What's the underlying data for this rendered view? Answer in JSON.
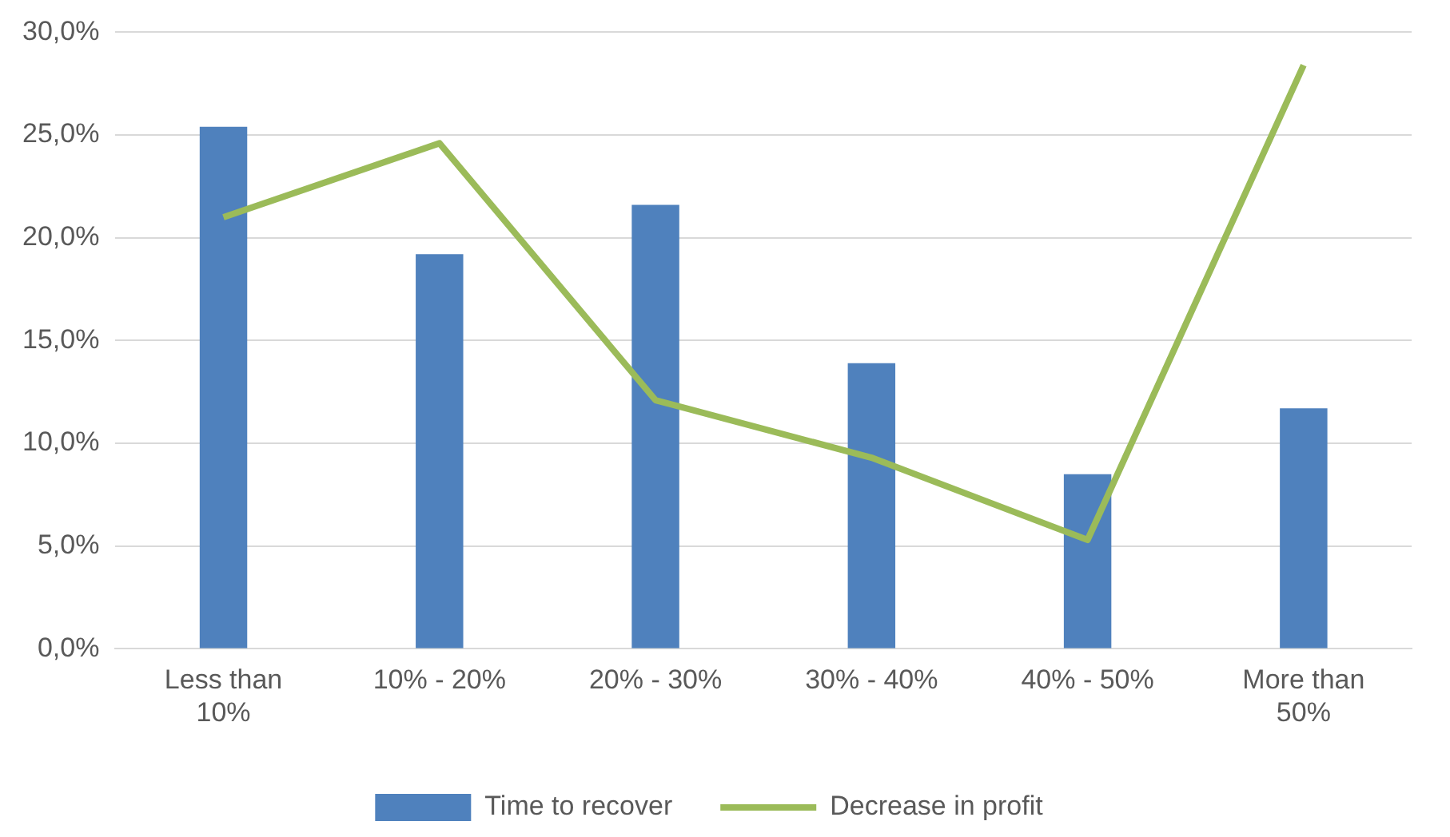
{
  "chart_data": {
    "type": "bar",
    "categories": [
      "Less than 10%",
      "10% - 20%",
      "20% - 30%",
      "30% - 40%",
      "40% - 50%",
      "More than 50%"
    ],
    "series": [
      {
        "name": "Time to recover",
        "color": "#4f81bd",
        "values": [
          25.4,
          19.2,
          21.6,
          13.9,
          8.5,
          11.7
        ]
      },
      {
        "name": "Decrease in profit",
        "type": "line",
        "color": "#9bbb59",
        "values": [
          21.0,
          24.6,
          12.1,
          9.3,
          5.3,
          28.4
        ]
      }
    ],
    "ylim": [
      0,
      30
    ],
    "yticks": [
      {
        "value": 0,
        "label": "0,0%"
      },
      {
        "value": 5,
        "label": "5,0%"
      },
      {
        "value": 10,
        "label": "10,0%"
      },
      {
        "value": 15,
        "label": "15,0%"
      },
      {
        "value": 20,
        "label": "20,0%"
      },
      {
        "value": 25,
        "label": "25,0%"
      },
      {
        "value": 30,
        "label": "30,0%"
      }
    ],
    "grid": "y",
    "legend": "bottom",
    "marker": "none"
  }
}
